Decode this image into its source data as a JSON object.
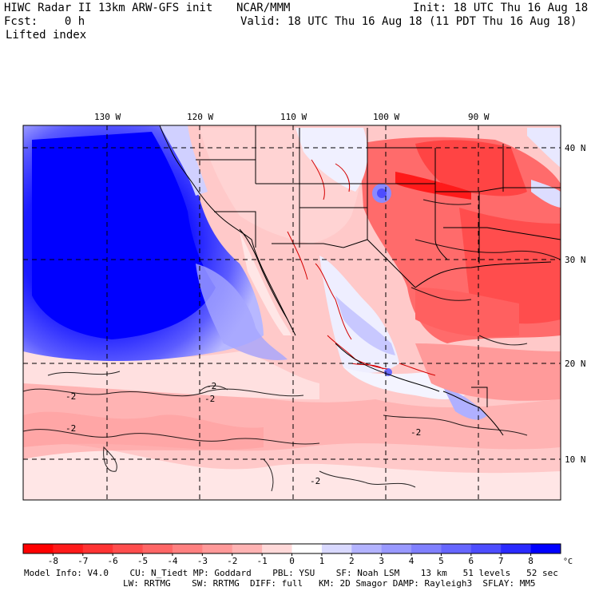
{
  "header": {
    "title_left": "HIWC Radar II 13km ARW-GFS init",
    "title_center": "NCAR/MMM",
    "init_label": "Init: 18 UTC Thu 16 Aug 18",
    "fcst_label": "Fcst:    0 h",
    "valid_label": "Valid: 18 UTC Thu 16 Aug 18 (11 PDT Thu 16 Aug 18)",
    "field_name": "Lifted index"
  },
  "map": {
    "lon_labels": [
      "130 W",
      "120 W",
      "110 W",
      "100 W",
      "90 W"
    ],
    "lat_labels": [
      "40 N",
      "30 N",
      "20 N",
      "10 N"
    ],
    "contour_labels": [
      "-2",
      "-2",
      "-2",
      "-2",
      "-2",
      "-2"
    ]
  },
  "colorbar": {
    "ticks": [
      "-8",
      "-7",
      "-6",
      "-5",
      "-4",
      "-3",
      "-2",
      "-1",
      "0",
      "1",
      "2",
      "3",
      "4",
      "5",
      "6",
      "7",
      "8"
    ],
    "unit": "°C",
    "colors": [
      "#ff0000",
      "#ff1a1a",
      "#ff3333",
      "#ff4d4d",
      "#ff6666",
      "#ff8080",
      "#ff9999",
      "#ffb3b3",
      "#ffd9d9",
      "#ffffff",
      "#d9d9ff",
      "#b3b3ff",
      "#9999ff",
      "#8080ff",
      "#6666ff",
      "#4d4dff",
      "#2a2aff",
      "#0000ff"
    ]
  },
  "footer": {
    "line1": "Model Info: V4.0    CU: N_Tiedt MP: Goddard    PBL: YSU    SF: Noah LSM    13 km   51 levels   52 sec",
    "line2": "LW: RRTMG    SW: RRTMG  DIFF: full   KM: 2D Smagor DAMP: Rayleigh3  SFLAY: MM5"
  }
}
